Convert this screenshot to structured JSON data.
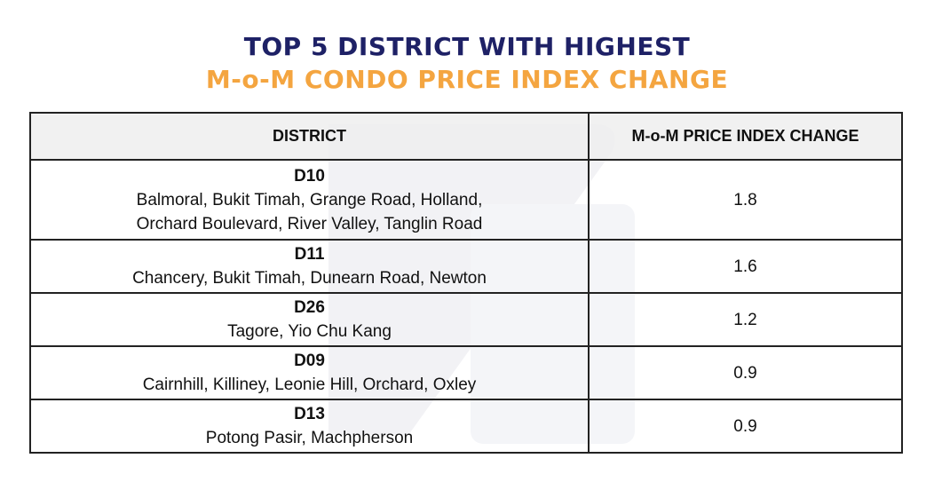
{
  "title": {
    "line1": "TOP 5 DISTRICT WITH HIGHEST",
    "line2": "M-o-M CONDO PRICE INDEX CHANGE"
  },
  "colors": {
    "title_primary": "#1e2166",
    "title_accent": "#f4a540",
    "header_bg": "#eeeeee"
  },
  "table": {
    "headers": [
      "DISTRICT",
      "M-o-M PRICE INDEX CHANGE"
    ],
    "rows": [
      {
        "code": "D10",
        "areas": [
          "Balmoral, Bukit Timah, Grange Road, Holland,",
          "Orchard Boulevard, River Valley, Tanglin Road"
        ],
        "change": "1.8"
      },
      {
        "code": "D11",
        "areas": [
          "Chancery, Bukit Timah, Dunearn Road, Newton"
        ],
        "change": "1.6"
      },
      {
        "code": "D26",
        "areas": [
          "Tagore, Yio Chu Kang"
        ],
        "change": "1.2"
      },
      {
        "code": "D09",
        "areas": [
          "Cairnhill, Killiney, Leonie Hill, Orchard, Oxley"
        ],
        "change": "0.9"
      },
      {
        "code": "D13",
        "areas": [
          "Potong Pasir, Machpherson"
        ],
        "change": "0.9"
      }
    ]
  }
}
